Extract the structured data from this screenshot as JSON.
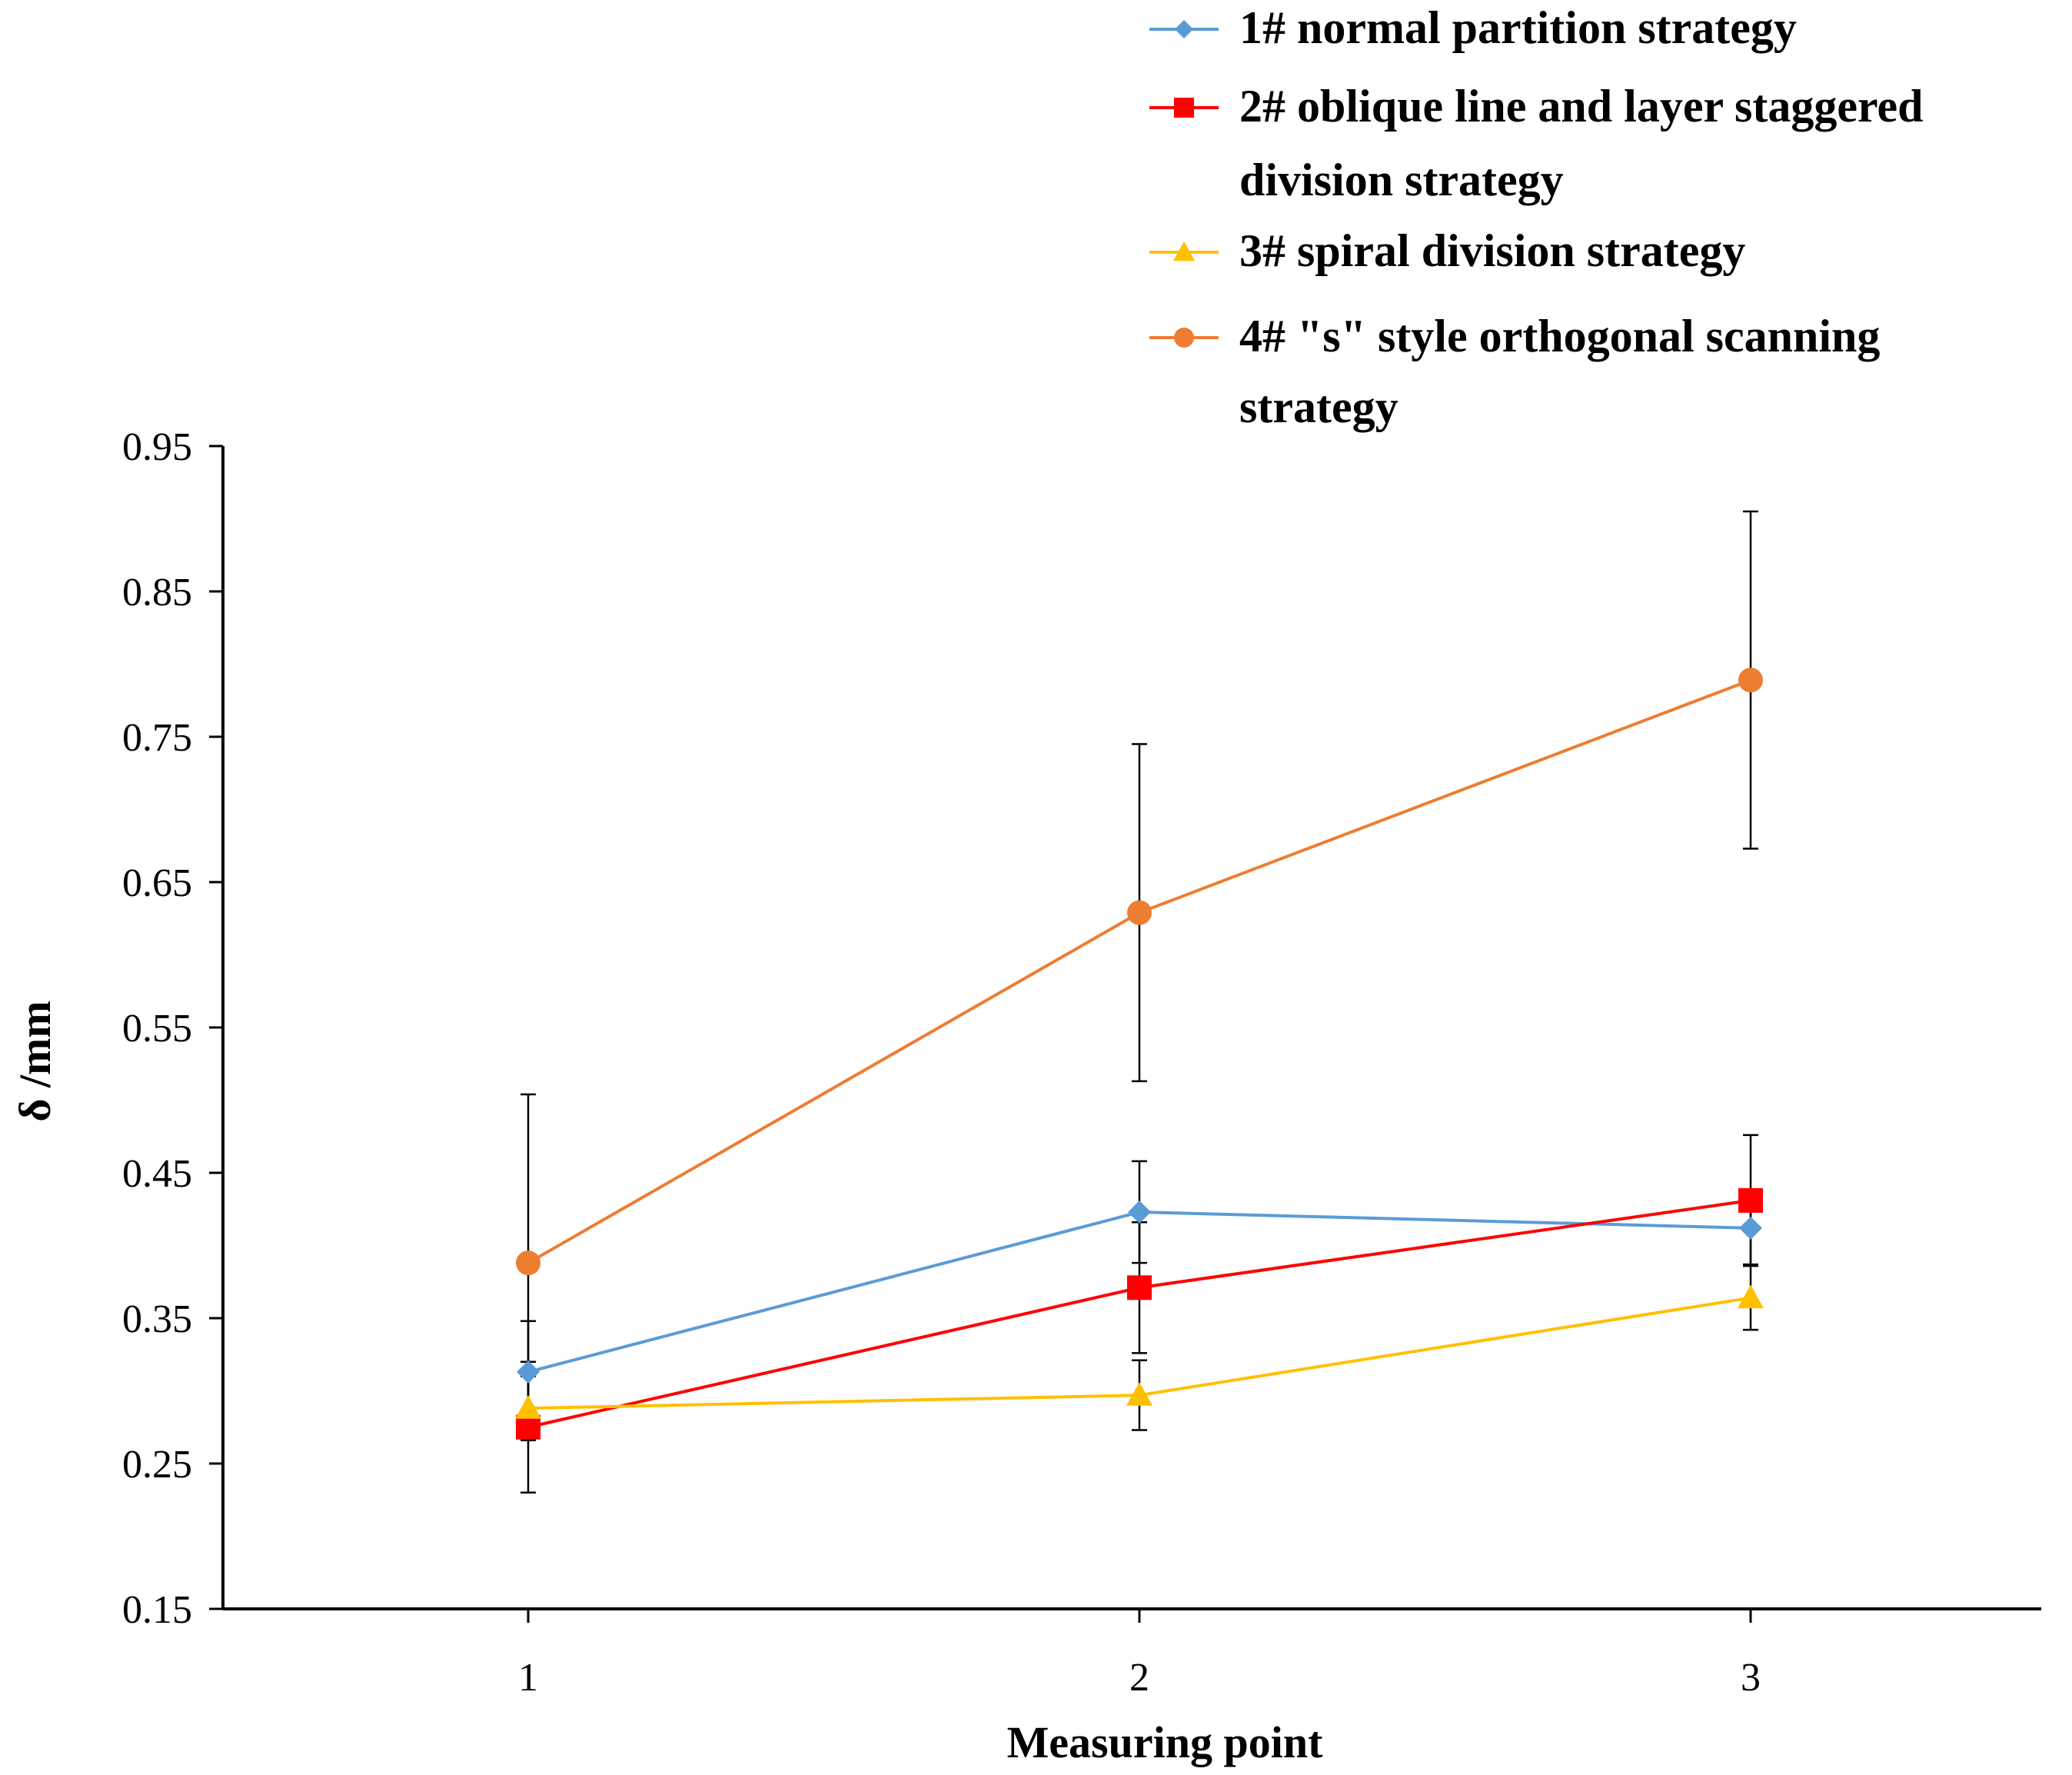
{
  "chart_data": {
    "type": "line",
    "title": "",
    "xlabel": "Measuring point",
    "ylabel": "δ /mm",
    "categories": [
      "1",
      "2",
      "3"
    ],
    "ylim": [
      0.15,
      0.95
    ],
    "yticks": [
      0.15,
      0.25,
      0.35,
      0.45,
      0.55,
      0.65,
      0.75,
      0.85,
      0.95
    ],
    "ytick_labels": [
      "0.15",
      "0.25",
      "0.35",
      "0.45",
      "0.55",
      "0.65",
      "0.75",
      "0.85",
      "0.95"
    ],
    "grid": false,
    "legend_position": "top-right",
    "series": [
      {
        "name": "1# normal partition strategy",
        "legend_lines": [
          "1# normal partition strategy"
        ],
        "color": "#5B9BD5",
        "marker": "diamond",
        "values": [
          0.313,
          0.423,
          0.412
        ],
        "errors": [
          0.035,
          0.035,
          0.025
        ]
      },
      {
        "name": "2# oblique line and layer staggered division strategy",
        "legend_lines": [
          "2# oblique line and layer staggered",
          "division strategy"
        ],
        "color": "#FF0000",
        "marker": "square",
        "values": [
          0.275,
          0.371,
          0.431
        ],
        "errors": [
          0.045,
          0.045,
          0.045
        ]
      },
      {
        "name": "3# spiral division strategy",
        "legend_lines": [
          "3# spiral division strategy"
        ],
        "color": "#FFC000",
        "marker": "triangle",
        "values": [
          0.288,
          0.297,
          0.364
        ],
        "errors": [
          0.022,
          0.024,
          0.022
        ]
      },
      {
        "name": "4# \"s\" style orthogonal scanning strategy",
        "legend_lines": [
          "4# \"s\" style orthogonal scanning",
          "strategy"
        ],
        "color": "#ED7D31",
        "marker": "circle",
        "values": [
          0.388,
          0.629,
          0.789
        ],
        "errors": [
          0.116,
          0.116,
          0.116
        ]
      }
    ]
  }
}
